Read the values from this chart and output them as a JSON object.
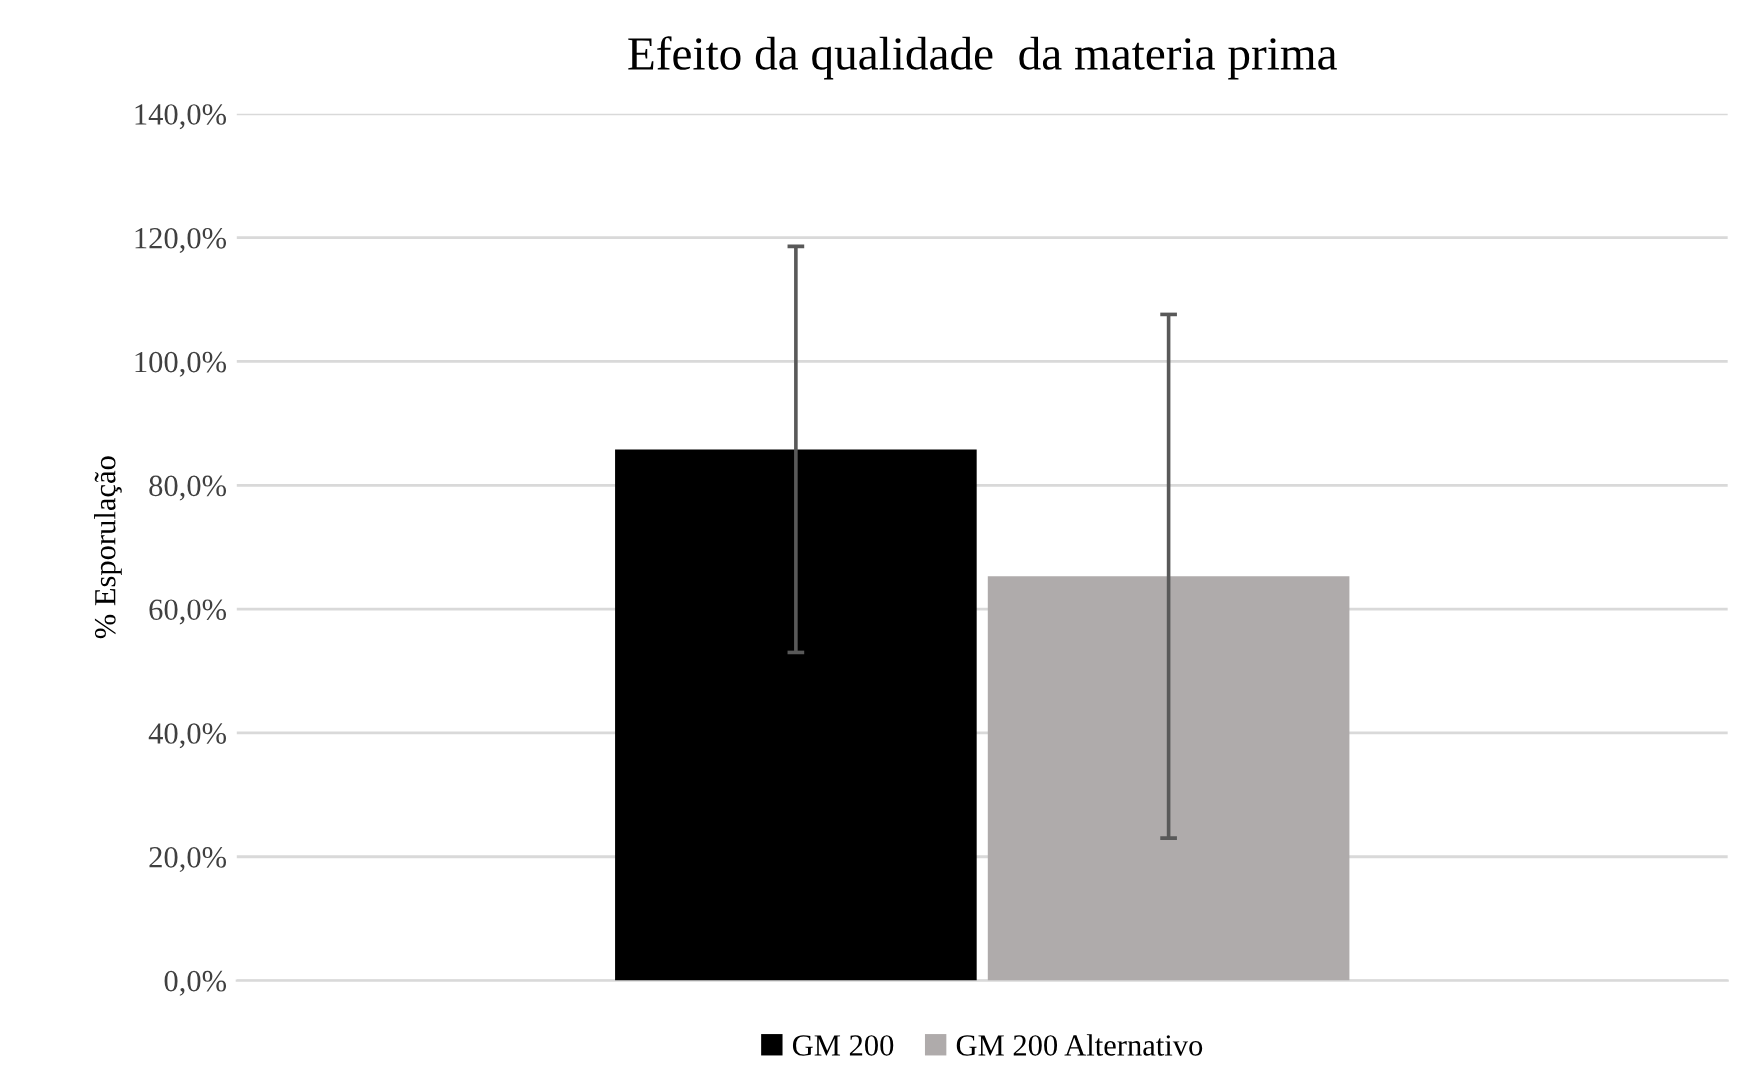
{
  "chart_data": {
    "type": "bar",
    "title": "Efeito da qualidade  da materia prima",
    "ylabel": "% Esporulação",
    "categories": [
      null
    ],
    "series": [
      {
        "name": "GM 200",
        "color": "#000000",
        "values": [
          85.8
        ],
        "errors": [
          32.8
        ]
      },
      {
        "name": "GM 200 Alternativo",
        "color": "#afabab",
        "values": [
          65.3
        ],
        "errors": [
          42.3
        ]
      }
    ],
    "ylim": [
      0,
      140
    ],
    "yticks": [
      {
        "value": 0,
        "label": "0,0%"
      },
      {
        "value": 20,
        "label": "20,0%"
      },
      {
        "value": 40,
        "label": "40,0%"
      },
      {
        "value": 60,
        "label": "60,0%"
      },
      {
        "value": 80,
        "label": "80,0%"
      },
      {
        "value": 100,
        "label": "100,0%"
      },
      {
        "value": 120,
        "label": "120,0%"
      },
      {
        "value": 140,
        "label": "140,0%"
      }
    ],
    "grid": "y",
    "legend": "bottom"
  }
}
